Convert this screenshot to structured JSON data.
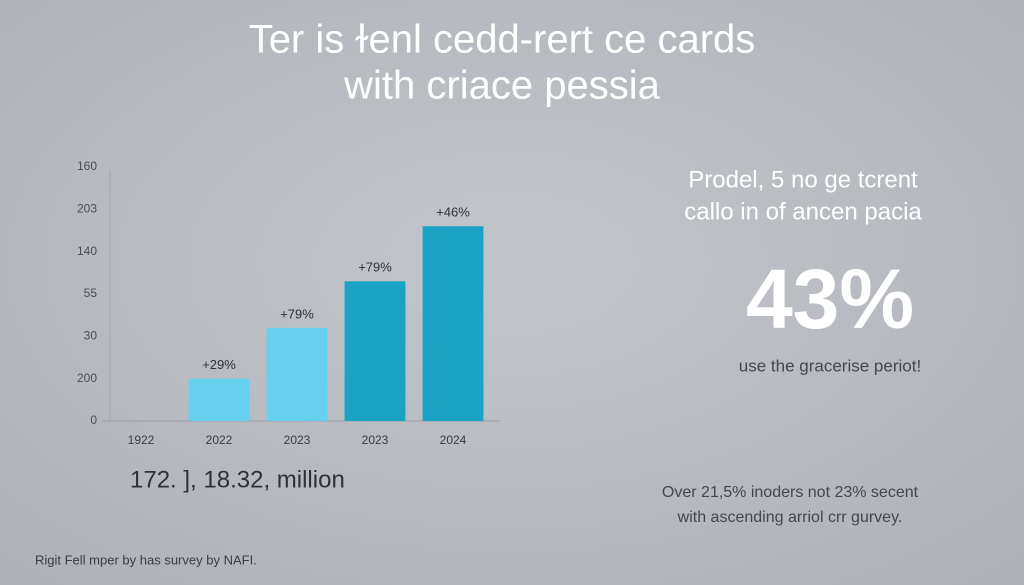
{
  "title": [
    "Ter is ɫenl cedd-rert ce cards",
    "with criace pessia"
  ],
  "chart_data": {
    "type": "bar",
    "categories": [
      "1922",
      "2022",
      "2023",
      "2023",
      "2024"
    ],
    "values": [
      0,
      1.0,
      2.2,
      3.3,
      4.6
    ],
    "annotations": [
      null,
      "+29%",
      "+79%",
      "+79%",
      "+46%"
    ],
    "colors": [
      "#67d0ee",
      "#67d0ee",
      "#67d0ee",
      "#1ba3c6",
      "#1ba3c6"
    ],
    "ylim": [
      0,
      6
    ],
    "yticks": [
      {
        "value": 0,
        "label": "0"
      },
      {
        "value": 1,
        "label": "200"
      },
      {
        "value": 2,
        "label": "30"
      },
      {
        "value": 3,
        "label": "55"
      },
      {
        "value": 4,
        "label": "140"
      },
      {
        "value": 5,
        "label": "203"
      },
      {
        "value": 6,
        "label": "160"
      }
    ],
    "grid": false
  },
  "chart_caption": "172. ], 18.32, million",
  "panel": {
    "heading": [
      "Prodel, 5 no ge tcrent",
      "callo in of ancen pacia"
    ],
    "stat": "43%",
    "stat_caption": "use the gracerise periot!",
    "note": [
      "Over 21,5% inoders not 23% secent",
      "with ascending arriol crr gurvey."
    ]
  },
  "footer": "Rigit Fell mper by has survey by NAFI."
}
